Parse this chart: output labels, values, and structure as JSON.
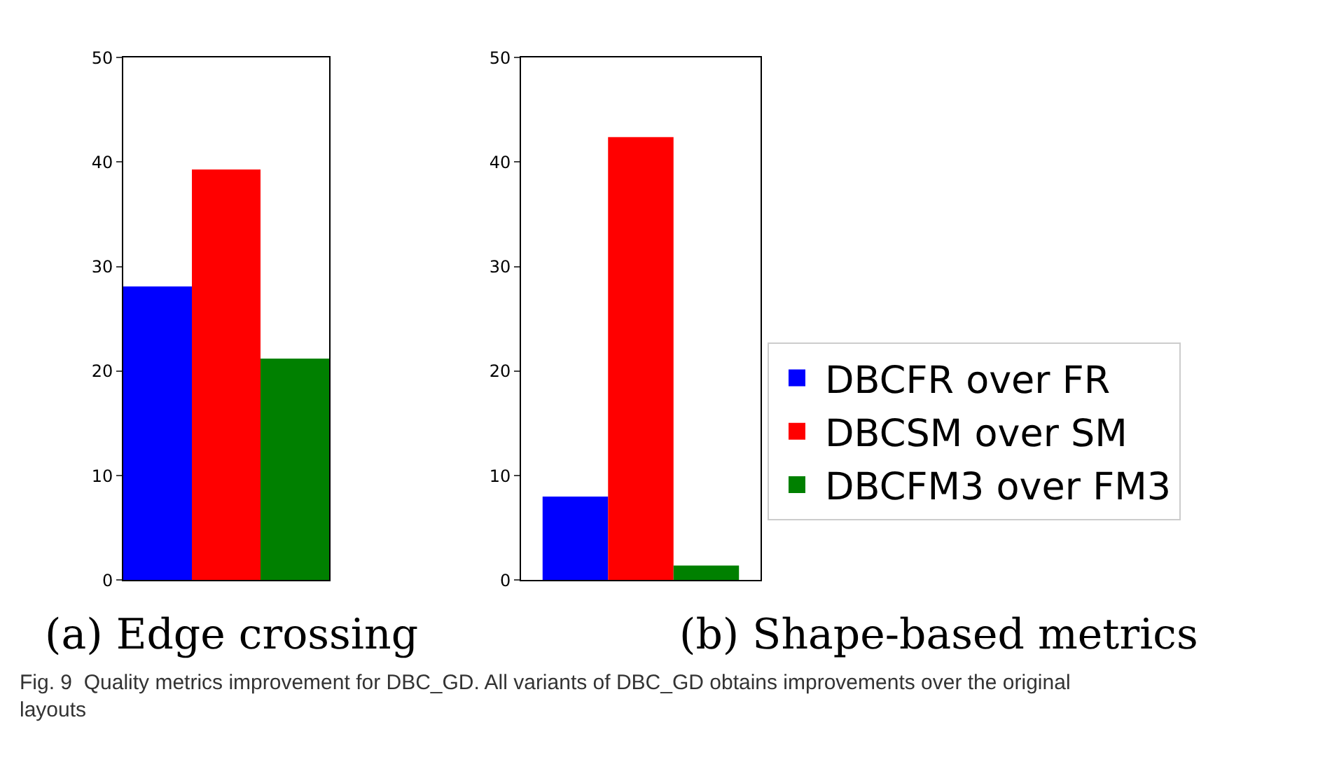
{
  "chart_data": [
    {
      "type": "bar",
      "xlabel": "(a) Edge crossing",
      "categories": [
        null
      ],
      "ylim": [
        0,
        50
      ],
      "yticks": [
        0,
        10,
        20,
        30,
        40,
        50
      ],
      "legend": false,
      "series": [
        {
          "color": "#0000ff",
          "values": [
            28.1
          ]
        },
        {
          "color": "#ff0000",
          "values": [
            39.3
          ]
        },
        {
          "color": "#008000",
          "values": [
            21.2
          ]
        }
      ],
      "annotations": [
        "Fig. 9  Quality metrics improvement for DBC_GD. All variants of DBC_GD obtains improvements over the original layouts"
      ]
    },
    {
      "type": "bar",
      "xlabel": "(b) Shape-based metrics",
      "categories": [
        null
      ],
      "ylim": [
        0,
        50
      ],
      "yticks": [
        0,
        10,
        20,
        30,
        40,
        50
      ],
      "legend": "right",
      "series": [
        {
          "name": "DBCFR over FR",
          "color": "#0000ff",
          "values": [
            8.0
          ]
        },
        {
          "name": "DBCSM over SM",
          "color": "#ff0000",
          "values": [
            42.4
          ]
        },
        {
          "name": "DBCFM3 over FM3",
          "color": "#008000",
          "values": [
            1.4
          ]
        }
      ]
    }
  ]
}
